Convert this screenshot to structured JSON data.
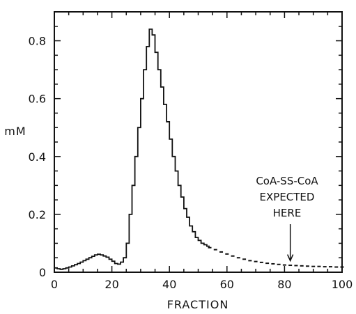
{
  "chart_data": {
    "type": "line",
    "xlabel": "FRACTION",
    "ylabel": "mM",
    "xlim": [
      0,
      100
    ],
    "ylim": [
      0,
      0.9
    ],
    "x_ticks": [
      0,
      20,
      40,
      60,
      80,
      100
    ],
    "y_ticks": [
      0,
      0.2,
      0.4,
      0.6,
      0.8
    ],
    "x_tick_labels": [
      "0",
      "20",
      "40",
      "60",
      "80",
      "100"
    ],
    "y_tick_labels": [
      "0",
      "0.2",
      "0.4",
      "0.6",
      "0.8"
    ],
    "grid": false,
    "series": [
      {
        "style": "step",
        "x": [
          0,
          1,
          2,
          3,
          4,
          5,
          6,
          7,
          8,
          9,
          10,
          11,
          12,
          13,
          14,
          15,
          16,
          17,
          18,
          19,
          20,
          21,
          22,
          23,
          24,
          25,
          26,
          27,
          28,
          29,
          30,
          31,
          32,
          33,
          34,
          35,
          36,
          37,
          38,
          39,
          40,
          41,
          42,
          43,
          44,
          45,
          46,
          47,
          48,
          49,
          50,
          51,
          52,
          53
        ],
        "values": [
          0.015,
          0.012,
          0.01,
          0.012,
          0.015,
          0.018,
          0.022,
          0.026,
          0.03,
          0.035,
          0.04,
          0.045,
          0.05,
          0.055,
          0.06,
          0.062,
          0.06,
          0.056,
          0.052,
          0.045,
          0.038,
          0.03,
          0.028,
          0.035,
          0.05,
          0.1,
          0.2,
          0.3,
          0.4,
          0.5,
          0.6,
          0.7,
          0.78,
          0.84,
          0.82,
          0.76,
          0.7,
          0.64,
          0.58,
          0.52,
          0.46,
          0.4,
          0.35,
          0.3,
          0.26,
          0.22,
          0.19,
          0.16,
          0.14,
          0.12,
          0.11,
          0.1,
          0.095,
          0.09
        ]
      },
      {
        "style": "dotted",
        "x": [
          54,
          56,
          58,
          60,
          62,
          64,
          66,
          68,
          70,
          72,
          74,
          76,
          78,
          80,
          82,
          84,
          86,
          88,
          90,
          92,
          94,
          96,
          98,
          100
        ],
        "values": [
          0.085,
          0.078,
          0.07,
          0.063,
          0.056,
          0.05,
          0.045,
          0.04,
          0.037,
          0.034,
          0.031,
          0.029,
          0.027,
          0.025,
          0.024,
          0.023,
          0.022,
          0.021,
          0.02,
          0.02,
          0.019,
          0.019,
          0.018,
          0.018
        ]
      }
    ],
    "annotations": [
      {
        "lines": [
          "CoA-SS-CoA",
          "EXPECTED",
          "HERE"
        ],
        "arrow_to": {
          "x": 82,
          "y": 0.03
        }
      }
    ]
  }
}
